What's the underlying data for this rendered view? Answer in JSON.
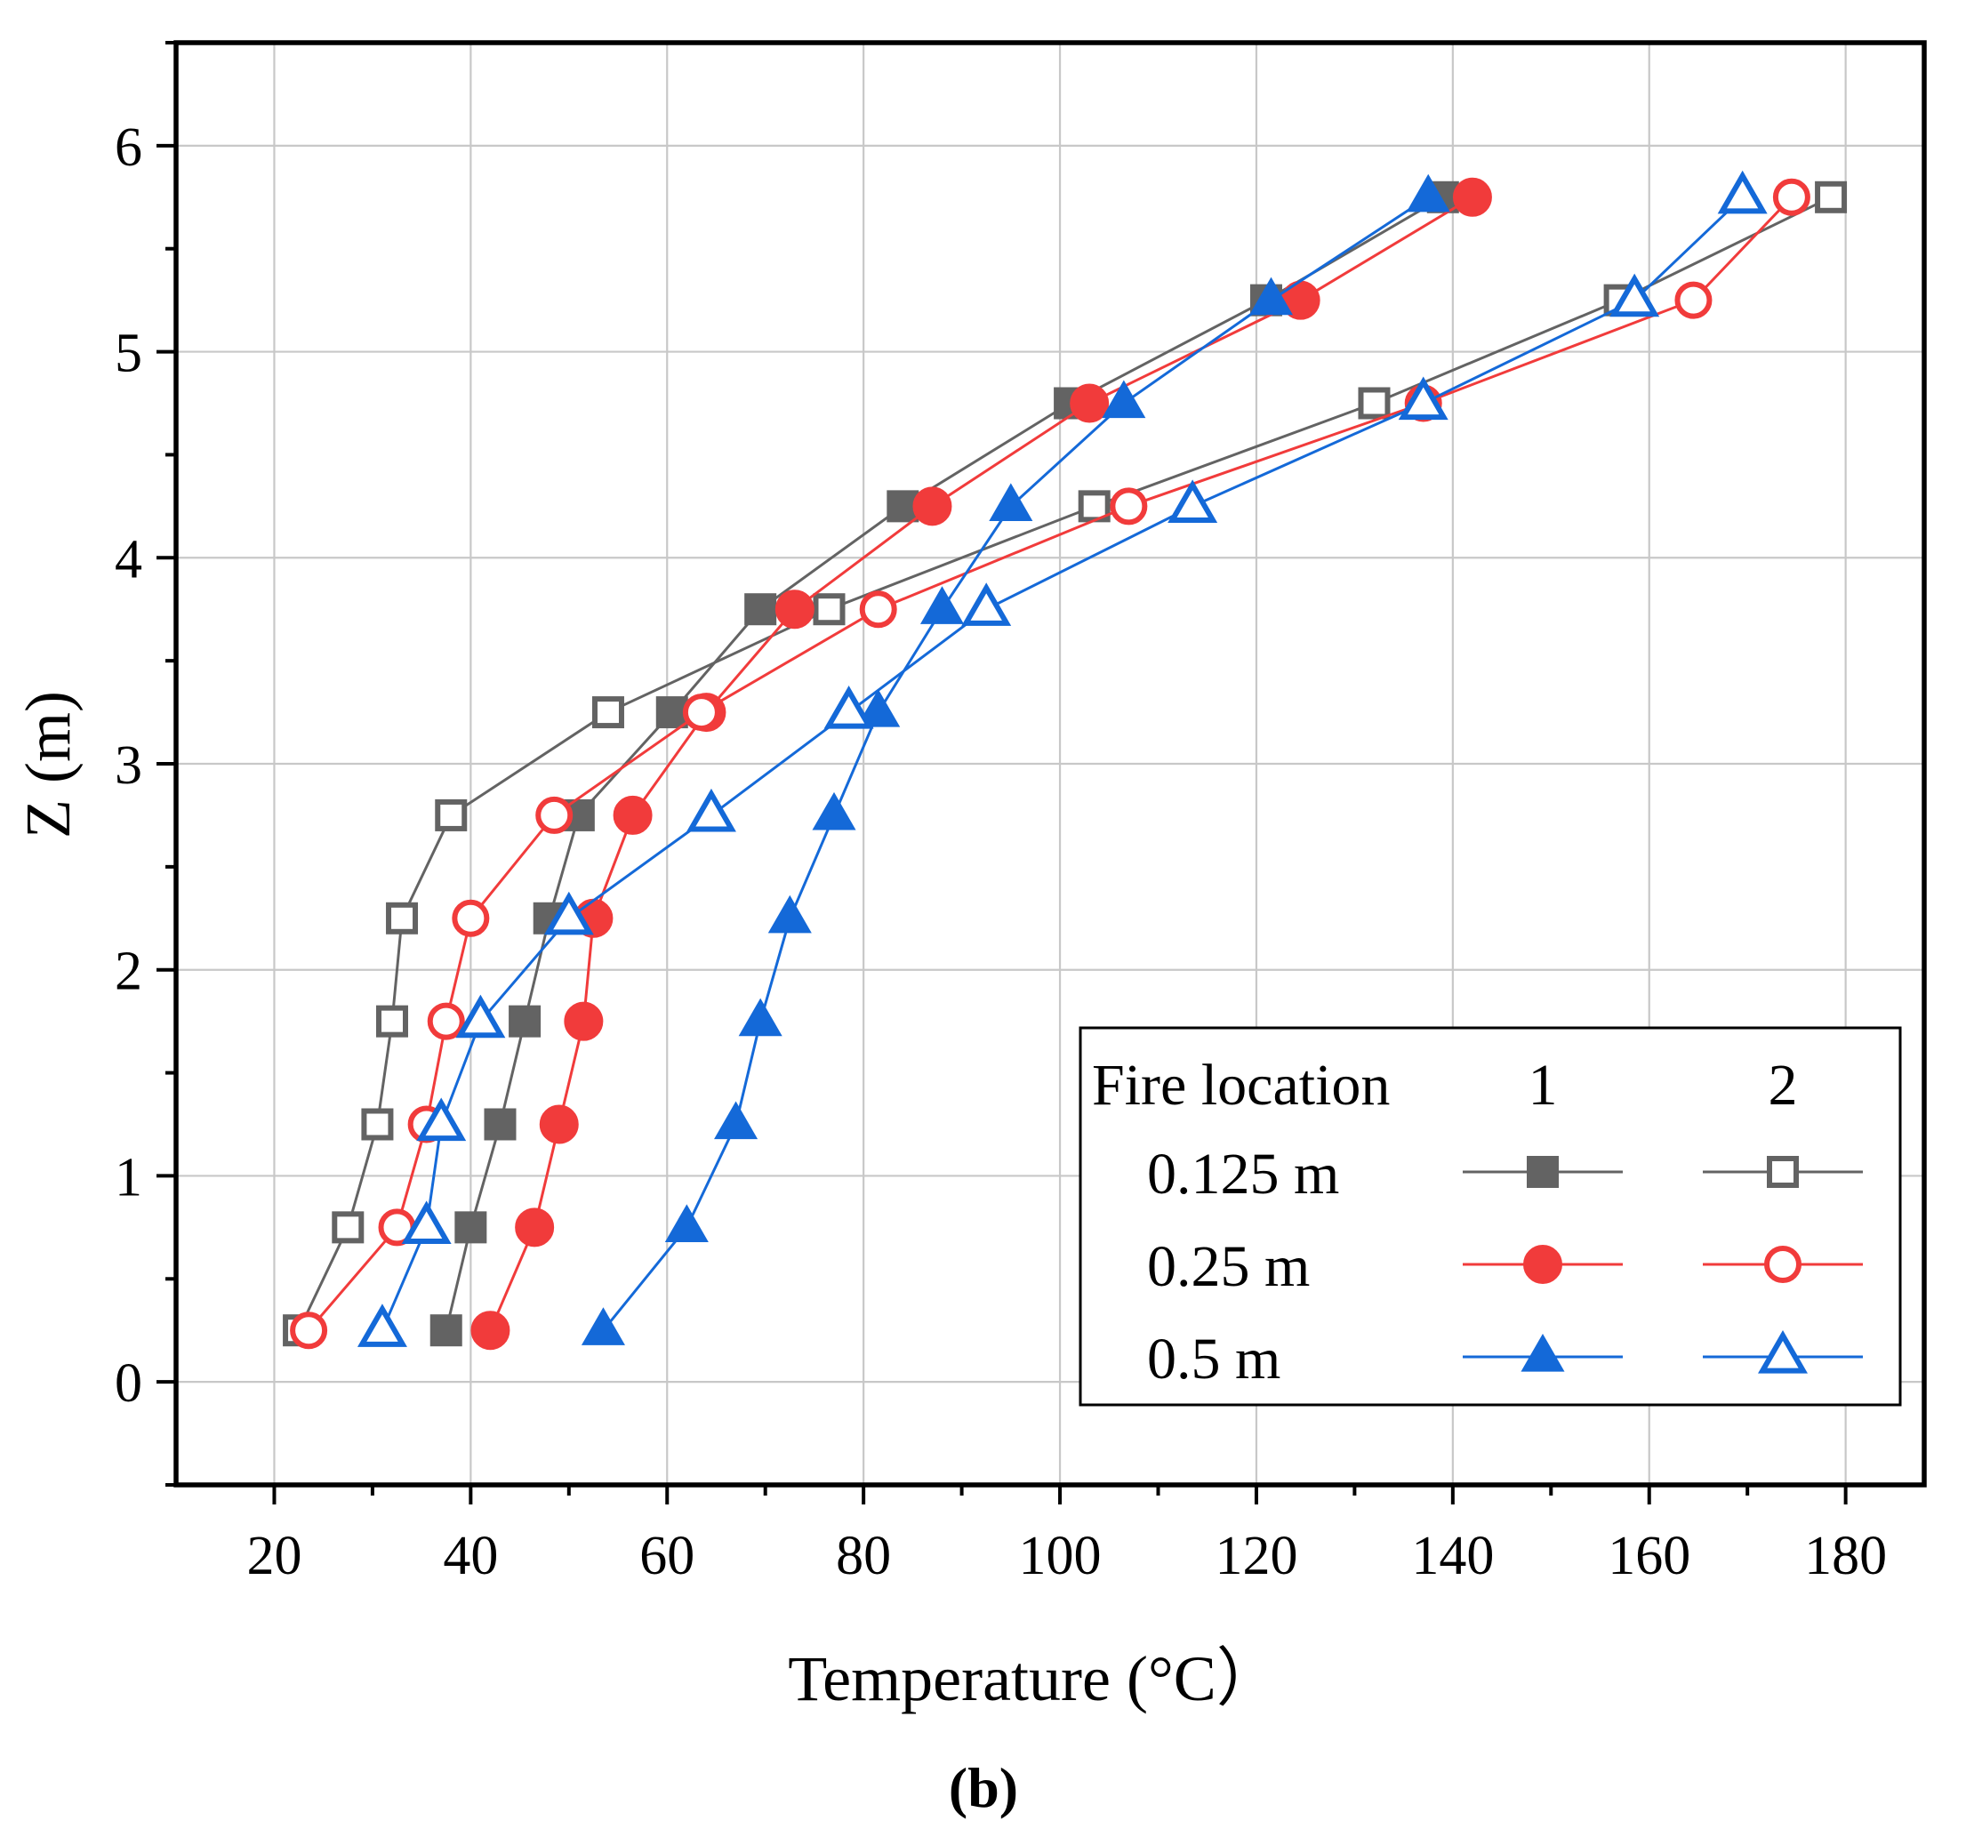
{
  "chart_data": {
    "type": "line",
    "title": "",
    "xlabel": "Temperature (°C）",
    "ylabel": "Z (m)",
    "panel_label": "(b)",
    "xlim": [
      10,
      188
    ],
    "ylim": [
      -0.5,
      6.5
    ],
    "xticks": [
      20,
      40,
      60,
      80,
      100,
      120,
      140,
      160,
      180
    ],
    "yticks": [
      0,
      1,
      2,
      3,
      4,
      5,
      6
    ],
    "grid": true,
    "legend": {
      "placement": "bottom-right",
      "header": "Fire location",
      "col1": "1",
      "col2": "2",
      "rows": [
        "0.125 m",
        "0.25 m",
        "0.5 m"
      ]
    },
    "z": [
      0.25,
      0.75,
      1.25,
      1.75,
      2.25,
      2.75,
      3.25,
      3.75,
      4.25,
      4.75,
      5.25,
      5.75
    ],
    "series": [
      {
        "name": "0.125 m, fire location 1",
        "color": "#636363",
        "marker": "square",
        "filled": true,
        "values": [
          37.5,
          40,
          43,
          45.5,
          48,
          51,
          60.5,
          69.5,
          84,
          101,
          121,
          139
        ]
      },
      {
        "name": "0.125 m, fire location 2",
        "color": "#636363",
        "marker": "square",
        "filled": false,
        "values": [
          22.5,
          27.5,
          30.5,
          32,
          33,
          38,
          54,
          76.5,
          103.5,
          132,
          157,
          178.5
        ]
      },
      {
        "name": "0.25 m, fire location 1",
        "color": "#f13b3b",
        "marker": "circle",
        "filled": true,
        "values": [
          42,
          46.5,
          49,
          51.5,
          52.5,
          56.5,
          64,
          73,
          87,
          103,
          124.5,
          142
        ]
      },
      {
        "name": "0.25 m, fire location 2",
        "color": "#f13b3b",
        "marker": "circle",
        "filled": false,
        "values": [
          23.5,
          32.5,
          35.5,
          37.5,
          40,
          48.5,
          63.5,
          81.5,
          107,
          137,
          164.5,
          174.5
        ]
      },
      {
        "name": "0.5 m, fire location 1",
        "color": "#1469d8",
        "marker": "triangle",
        "filled": true,
        "values": [
          53.5,
          62,
          67,
          69.5,
          72.5,
          77,
          81.5,
          88,
          95,
          106.5,
          121.5,
          137.5
        ]
      },
      {
        "name": "0.5 m, fire location 2",
        "color": "#1469d8",
        "marker": "triangle",
        "filled": false,
        "values": [
          31,
          35.5,
          37,
          41,
          50,
          64.5,
          78.5,
          92.5,
          113.5,
          137,
          158.5,
          169.5
        ]
      }
    ]
  }
}
